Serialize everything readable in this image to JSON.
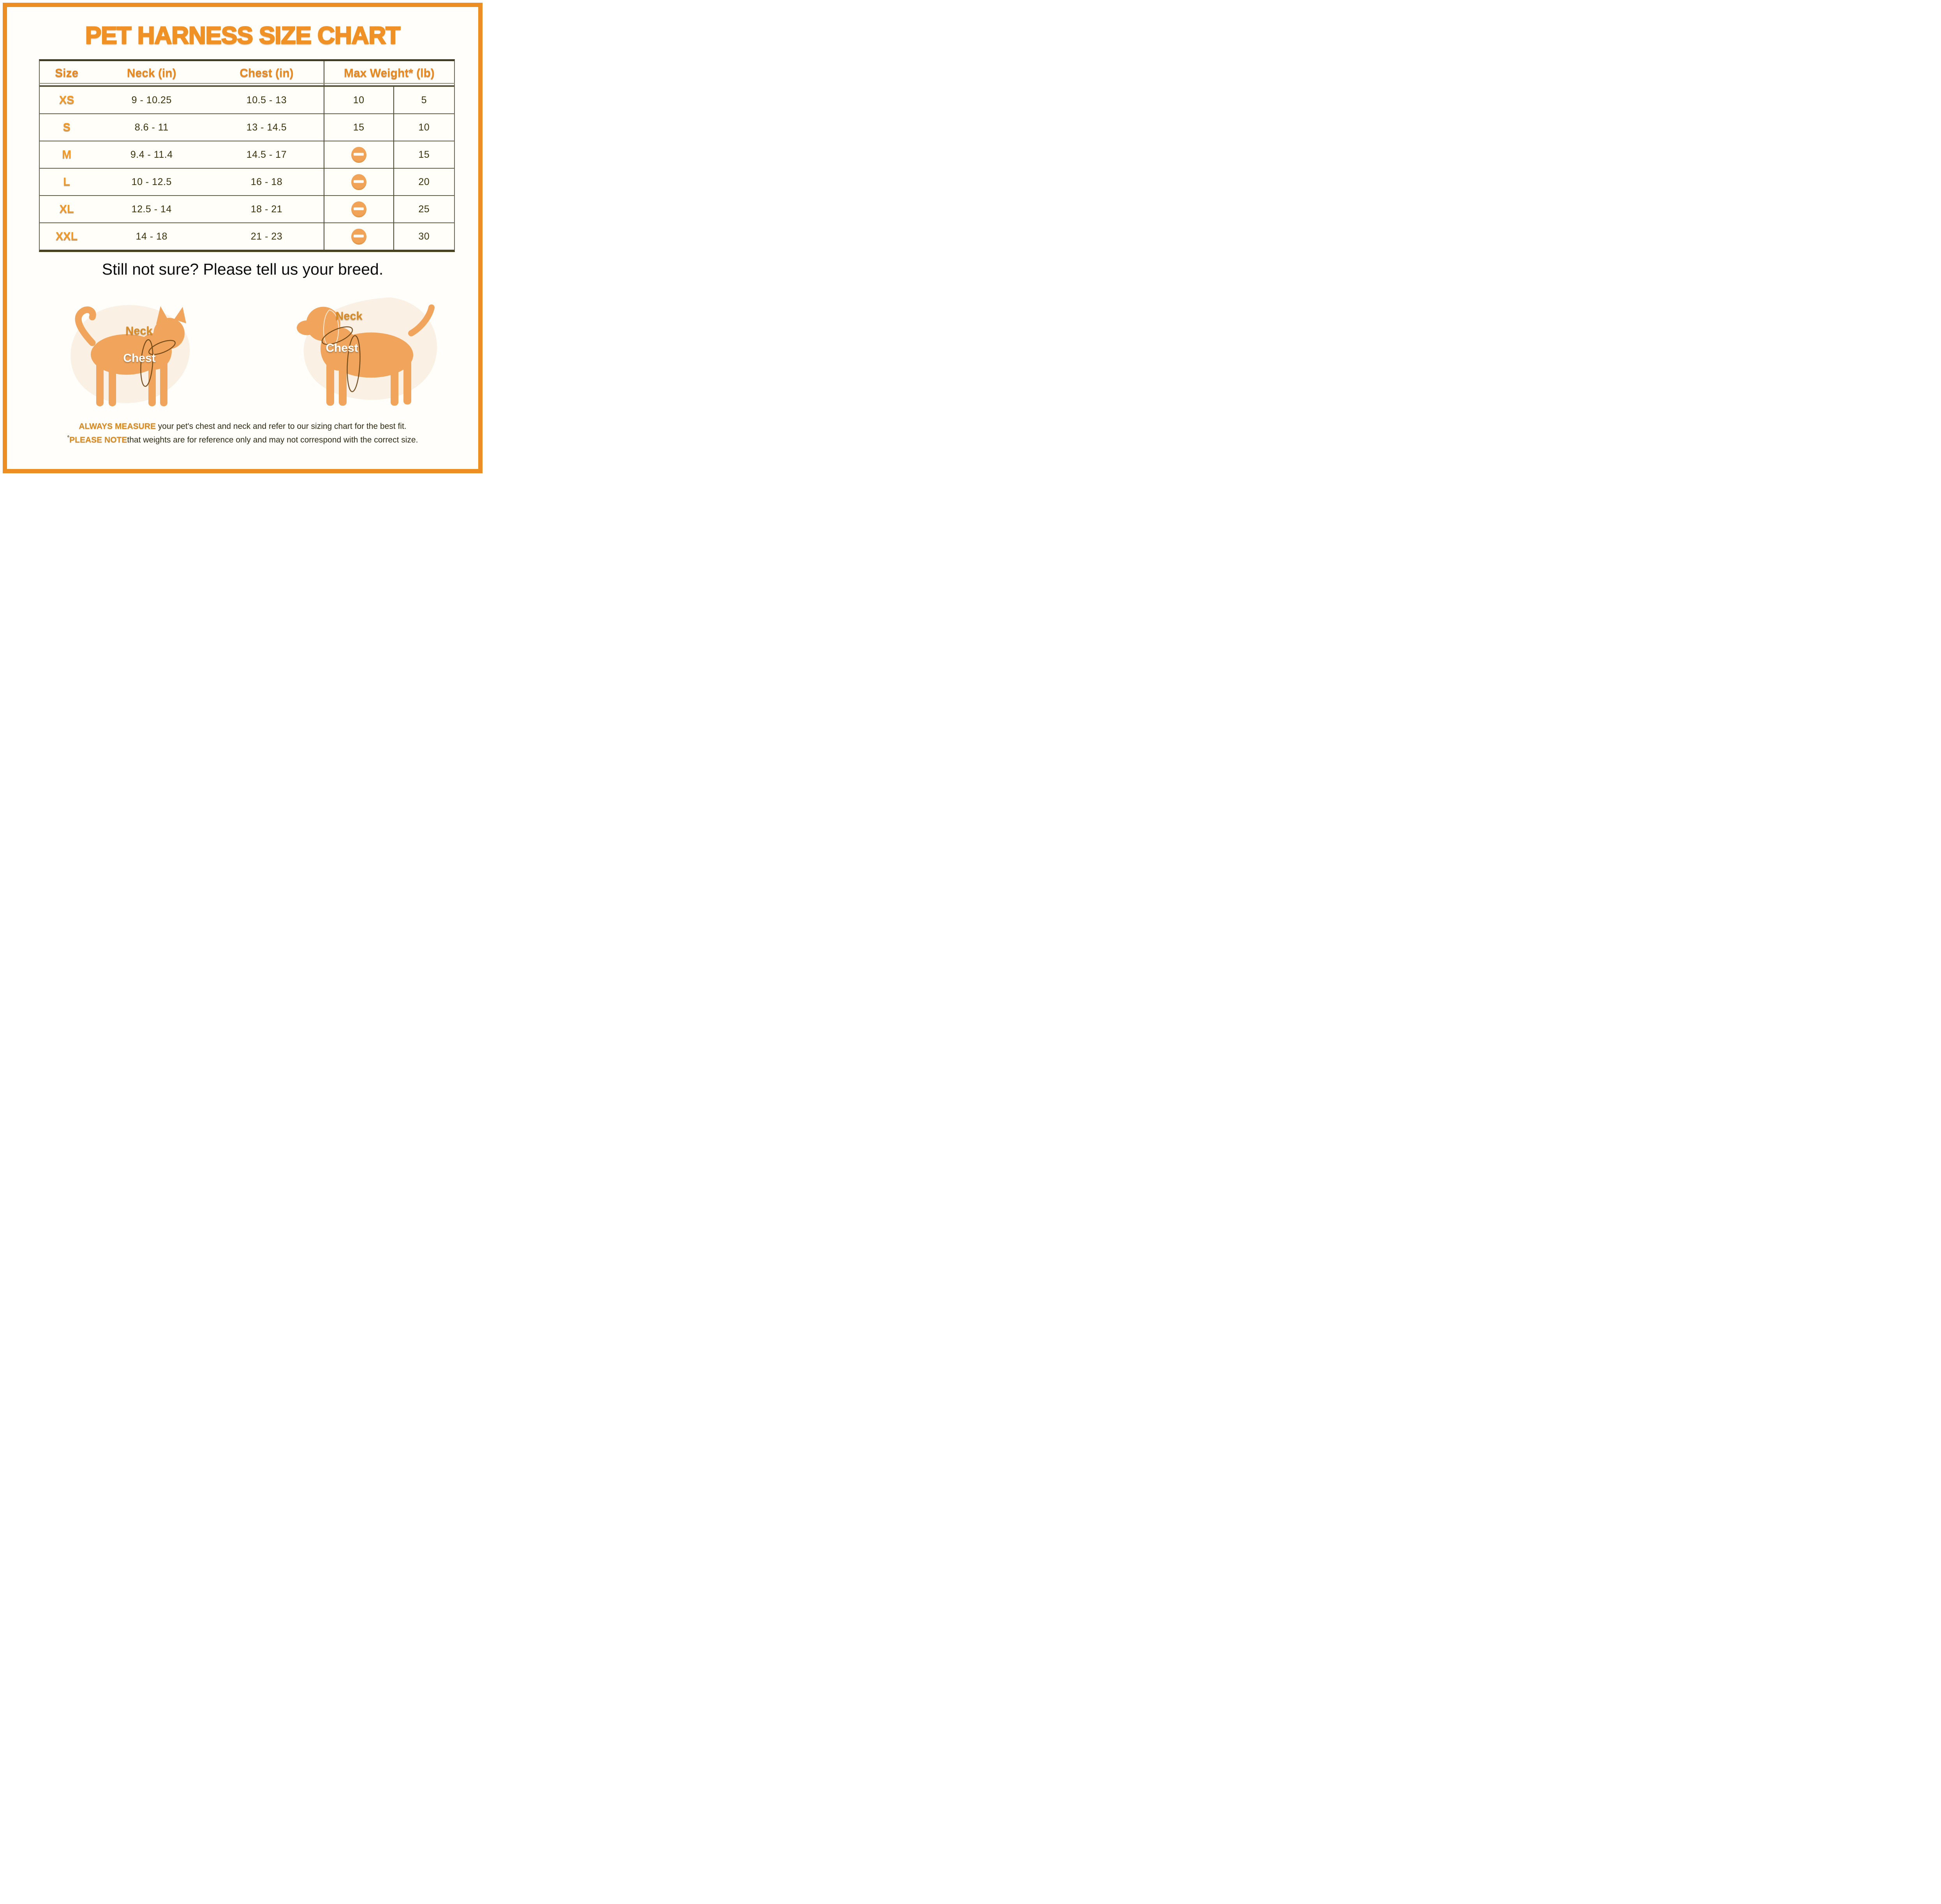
{
  "title": "PET HARNESS SIZE CHART",
  "table": {
    "headers": {
      "size": "Size",
      "neck": "Neck (in)",
      "chest": "Chest (in)",
      "max_weight": "Max Weight* (lb)"
    },
    "rows": [
      {
        "size": "XS",
        "neck": "9 - 10.25",
        "chest": "10.5 - 13",
        "weight_col1": "10",
        "weight_col2": "5"
      },
      {
        "size": "S",
        "neck": "8.6 - 11",
        "chest": "13 - 14.5",
        "weight_col1": "15",
        "weight_col2": "10"
      },
      {
        "size": "M",
        "neck": "9.4 - 11.4",
        "chest": "14.5 - 17",
        "weight_col1": null,
        "weight_col2": "15"
      },
      {
        "size": "L",
        "neck": "10 - 12.5",
        "chest": "16 - 18",
        "weight_col1": null,
        "weight_col2": "20"
      },
      {
        "size": "XL",
        "neck": "12.5 - 14",
        "chest": "18 - 21",
        "weight_col1": null,
        "weight_col2": "25"
      },
      {
        "size": "XXL",
        "neck": "14 - 18",
        "chest": "21 - 23",
        "weight_col1": null,
        "weight_col2": "30"
      }
    ],
    "empty_weight_icon": "minus-oval-icon"
  },
  "subtitle": "Still not sure? Please tell us your breed.",
  "illustrations": {
    "cat": {
      "neck_label": "Neck",
      "chest_label": "Chest"
    },
    "dog": {
      "neck_label": "Neck",
      "chest_label": "Chest"
    }
  },
  "notes": {
    "measure_bold": "ALWAYS MEASURE",
    "measure_rest": " your pet's chest and neck and refer to our sizing chart for the best fit.",
    "note_prefix": "°",
    "note_bold": "PLEASE NOTE",
    "note_rest": "that weights are for reference only and may not correspond with the correct size."
  },
  "colors": {
    "frame_orange": "#EC8E21",
    "title_orange": "#F09126",
    "header_orange": "#E8891F",
    "size_label_orange": "#F09A2B",
    "number_brown": "#3B320C",
    "silhouette_orange": "#F0A45C",
    "blob_cream": "#FAF0E3",
    "icon_orange": "#F1A458",
    "table_line_dark": "#46422c"
  },
  "chart_data": {
    "type": "table",
    "title": "PET HARNESS SIZE CHART",
    "columns": [
      "Size",
      "Neck (in)",
      "Chest (in)",
      "Max Weight* (lb) (col 1)",
      "Max Weight* (lb) (col 2)"
    ],
    "rows": [
      [
        "XS",
        "9 - 10.25",
        "10.5 - 13",
        "10",
        "5"
      ],
      [
        "S",
        "8.6 - 11",
        "13 - 14.5",
        "15",
        "10"
      ],
      [
        "M",
        "9.4 - 11.4",
        "14.5 - 17",
        "—",
        "15"
      ],
      [
        "L",
        "10 - 12.5",
        "16 - 18",
        "—",
        "20"
      ],
      [
        "XL",
        "12.5 - 14",
        "18 - 21",
        "—",
        "25"
      ],
      [
        "XXL",
        "14 - 18",
        "21 - 23",
        "—",
        "30"
      ]
    ],
    "notes": "Cells marked — show an orange minus-in-oval icon meaning no weight given"
  }
}
